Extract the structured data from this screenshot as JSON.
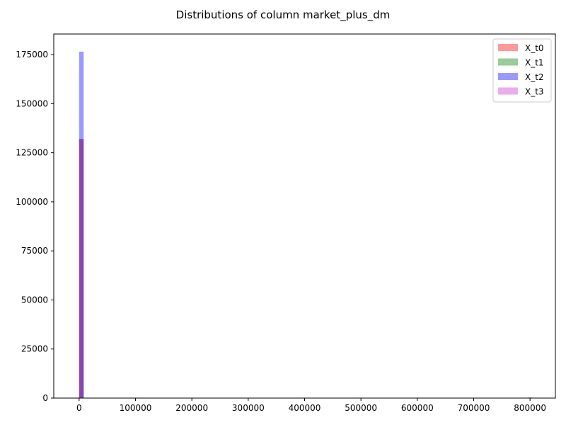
{
  "chart_data": {
    "type": "bar",
    "title": "Distributions of column market_plus_dm",
    "xlabel": "",
    "ylabel": "",
    "xlim": [
      -45000,
      845000
    ],
    "ylim": [
      0,
      185500
    ],
    "x_ticks": [
      0,
      100000,
      200000,
      300000,
      400000,
      500000,
      600000,
      700000,
      800000
    ],
    "y_ticks": [
      0,
      25000,
      50000,
      75000,
      100000,
      125000,
      150000,
      175000
    ],
    "bin_width": 8000,
    "legend_position": "upper right",
    "grid": false,
    "series": [
      {
        "name": "X_t0",
        "color": "#ff0000",
        "alpha": 0.4,
        "bins": [
          {
            "x0": 0,
            "x1": 8000,
            "count": 132000
          }
        ]
      },
      {
        "name": "X_t1",
        "color": "#008000",
        "alpha": 0.4,
        "bins": [
          {
            "x0": 0,
            "x1": 8000,
            "count": 132000
          }
        ]
      },
      {
        "name": "X_t2",
        "color": "#0000ff",
        "alpha": 0.4,
        "bins": [
          {
            "x0": 0,
            "x1": 8000,
            "count": 176500
          },
          {
            "x0": 796000,
            "x1": 804000,
            "count": 300
          }
        ]
      },
      {
        "name": "X_t3",
        "color": "#cc33cc",
        "alpha": 0.4,
        "bins": [
          {
            "x0": 0,
            "x1": 8000,
            "count": 132000
          }
        ]
      }
    ]
  }
}
